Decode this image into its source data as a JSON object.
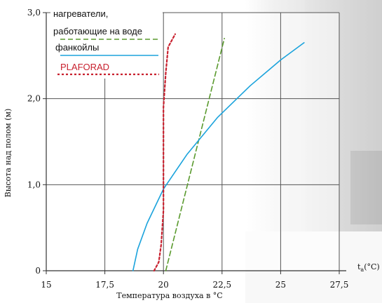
{
  "chart_data": {
    "type": "line",
    "xlabel": "Температура воздуха в °С",
    "ylabel": "Высота над полом (м)",
    "x_axis_end_label": "t",
    "x_axis_end_label_sub": "a",
    "x_axis_end_label_unit": "(°C)",
    "xlim": [
      15,
      27.5
    ],
    "ylim": [
      0,
      3.0
    ],
    "xticks": [
      "15",
      "17,5",
      "20",
      "22,5",
      "25",
      "27,5"
    ],
    "yticks": [
      "0",
      "1,0",
      "2,0",
      "3,0"
    ],
    "xtick_values": [
      15,
      17.5,
      20,
      22.5,
      25,
      27.5
    ],
    "ytick_values": [
      0,
      1.0,
      2.0,
      3.0
    ],
    "grid": true,
    "legend_position": "top-left",
    "series": [
      {
        "name": "нагреватели, работающие на воде",
        "name_lines": [
          "нагреватели,",
          "работающие на воде"
        ],
        "color": "#5a9a2e",
        "style": "dashed",
        "x": [
          20.1,
          22.6
        ],
        "y": [
          0,
          2.7
        ]
      },
      {
        "name": "фанкойлы",
        "name_lines": [
          "фанкойлы"
        ],
        "color": "#1ba3dc",
        "style": "solid",
        "x": [
          18.7,
          18.9,
          19.3,
          20.0,
          21.0,
          22.3,
          23.7,
          25.0,
          26.0
        ],
        "y": [
          0,
          0.25,
          0.55,
          0.95,
          1.35,
          1.78,
          2.15,
          2.45,
          2.65
        ]
      },
      {
        "name": "PLAFORAD",
        "name_lines": [
          "PLAFORAD"
        ],
        "color": "#c8202e",
        "style": "dotted",
        "x": [
          19.6,
          19.8,
          19.9,
          20.0,
          20.0,
          20.0,
          20.1,
          20.2,
          20.5
        ],
        "y": [
          0,
          0.1,
          0.3,
          0.7,
          1.3,
          1.9,
          2.3,
          2.6,
          2.75
        ]
      }
    ]
  }
}
